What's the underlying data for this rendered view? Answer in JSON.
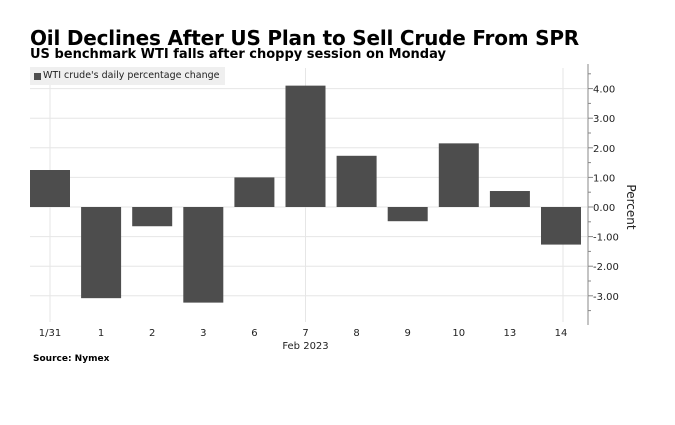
{
  "chart_data": {
    "type": "bar",
    "title": "Oil Declines After US Plan to Sell Crude From SPR",
    "subtitle": "US benchmark WTI falls after choppy session on Monday",
    "legend": [
      "WTI crude's daily percentage change"
    ],
    "legend_placement": "top-left",
    "categories": [
      "1/31",
      "1",
      "2",
      "3",
      "6",
      "7",
      "8",
      "9",
      "10",
      "13",
      "14"
    ],
    "xlabel": "Feb 2023",
    "ylabel": "Percent",
    "series": [
      {
        "name": "WTI crude's daily percentage change",
        "values": [
          1.25,
          -3.08,
          -0.65,
          -3.23,
          1.0,
          4.1,
          1.73,
          -0.48,
          2.15,
          0.54,
          -1.27
        ],
        "color": "#4d4d4d"
      }
    ],
    "yticks": [
      4.0,
      3.0,
      2.0,
      1.0,
      0.0,
      -1.0,
      -2.0,
      -3.0
    ],
    "ytick_labels": [
      "4.00",
      "3.00",
      "2.00",
      "1.00",
      "0.00",
      "-1.00",
      "-2.00",
      "-3.00"
    ],
    "ylim": [
      -4.0,
      4.6
    ],
    "grid": true,
    "yaxis_side": "right",
    "source": "Source: Nymex"
  }
}
